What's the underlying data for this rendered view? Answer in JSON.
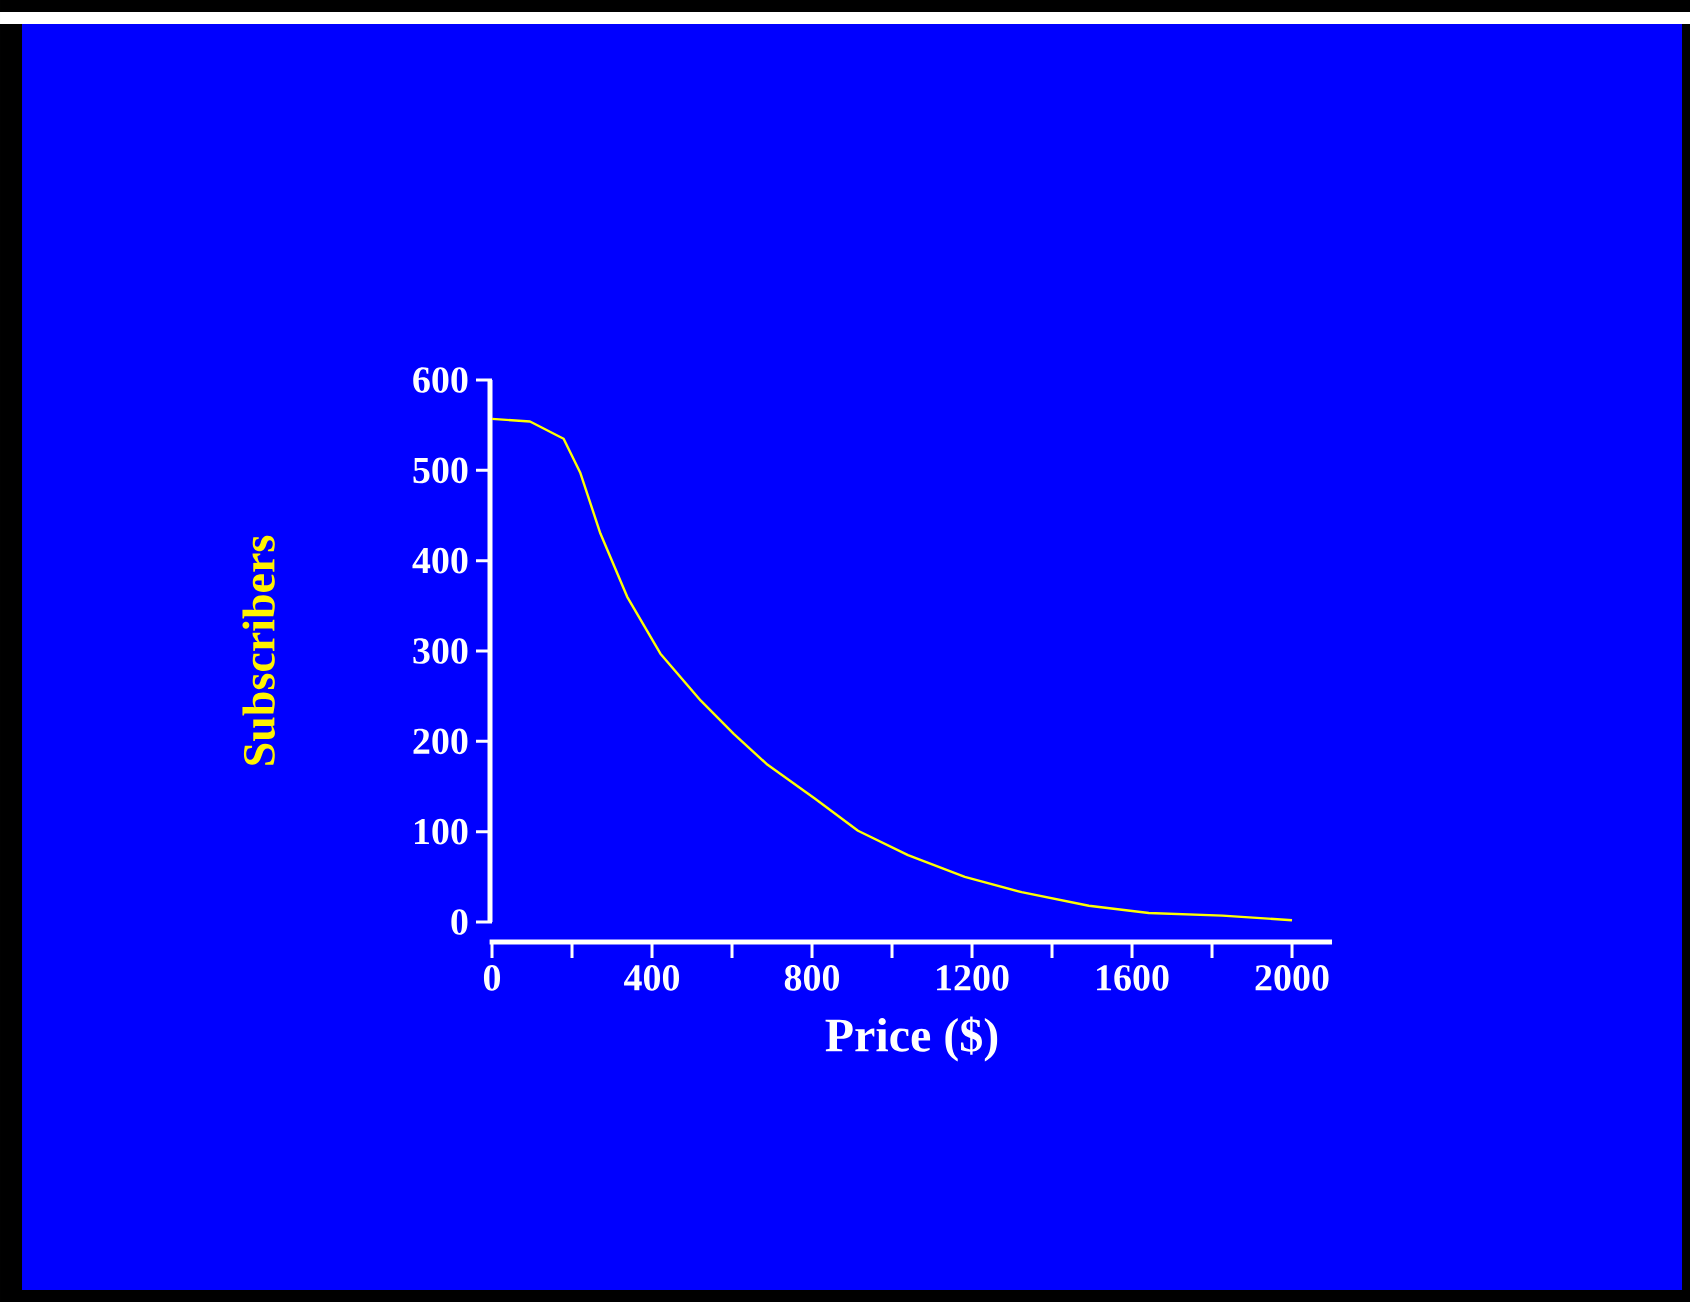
{
  "chart_data": {
    "type": "line",
    "xlabel": "Price ($)",
    "ylabel": "Subscribers",
    "x": [
      0,
      95,
      179,
      221,
      271,
      338,
      421,
      522,
      605,
      689,
      806,
      915,
      1040,
      1182,
      1324,
      1492,
      1642,
      1826,
      2000
    ],
    "series": [
      {
        "color": "#ffff00",
        "values": [
          557,
          554,
          535,
          497,
          430,
          360,
          297,
          245,
          208,
          174,
          137,
          101,
          74,
          50,
          33,
          18,
          10,
          7,
          2
        ]
      }
    ],
    "xlim": [
      0,
      2100
    ],
    "ylim": [
      0,
      600
    ],
    "xticks": [
      0,
      {
        "value": 200,
        "label": null
      },
      400,
      {
        "value": 600,
        "label": null
      },
      800,
      {
        "value": 1000,
        "label": null
      },
      1200,
      {
        "value": 1400,
        "label": null
      },
      1600,
      {
        "value": 1800,
        "label": null
      },
      2000
    ],
    "yticks": [
      0,
      100,
      200,
      300,
      400,
      500,
      600
    ],
    "grid": false,
    "marker": "none",
    "line_style": "solid"
  }
}
